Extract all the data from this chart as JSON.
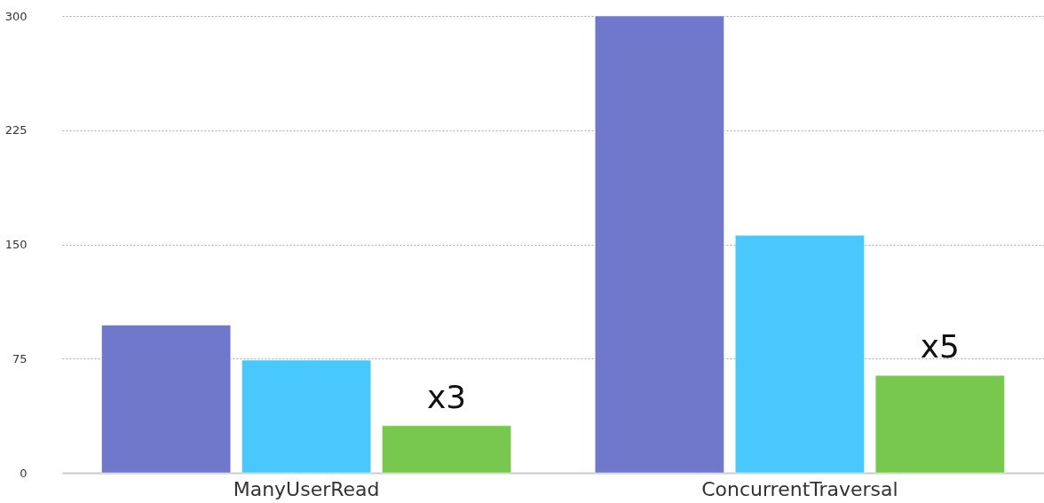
{
  "chart_data": {
    "type": "bar",
    "categories": [
      "ManyUserRead",
      "ConcurrentTraversal"
    ],
    "series": [
      {
        "color": "#6f78cb",
        "values": [
          97,
          300
        ]
      },
      {
        "color": "#48c8fc",
        "values": [
          74,
          156
        ]
      },
      {
        "color": "#78c74e",
        "values": [
          31,
          64
        ]
      }
    ],
    "ylim": [
      0,
      300
    ],
    "yticks": [
      0,
      75,
      150,
      225,
      300
    ],
    "grid": "y",
    "legend": false,
    "annotations": [
      "x3",
      "x5"
    ]
  }
}
